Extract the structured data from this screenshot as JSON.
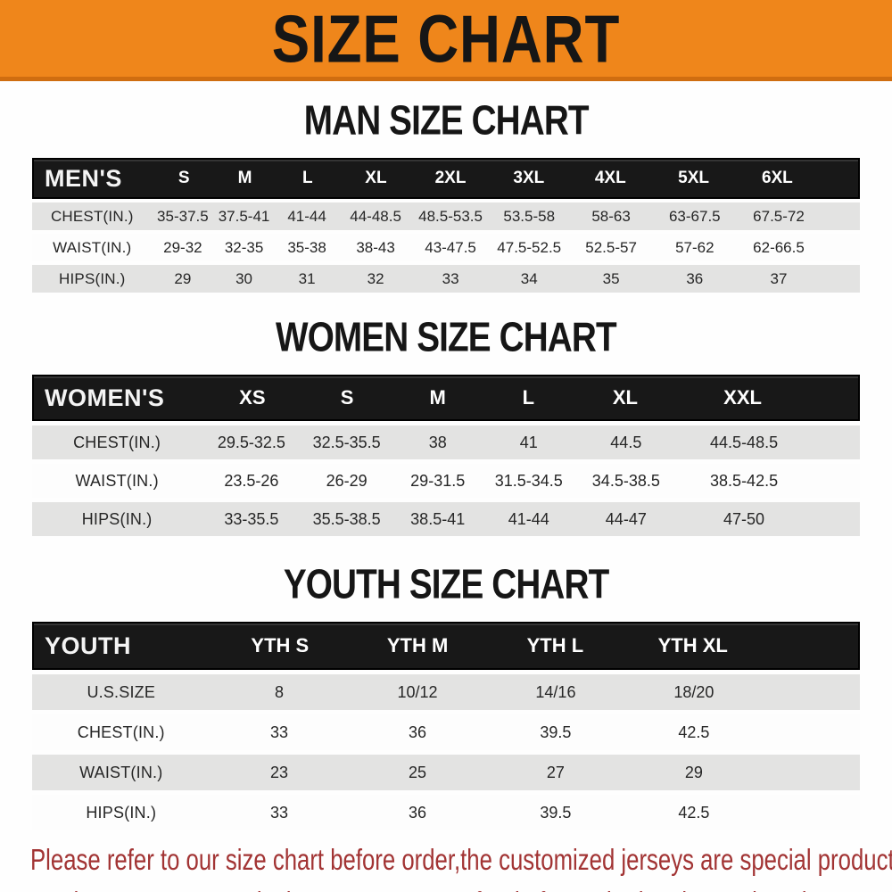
{
  "banner": {
    "title": "SIZE CHART",
    "bg_color": "#ef861b",
    "text_color": "#161616"
  },
  "sections": [
    {
      "key": "men",
      "heading": "MAN SIZE CHART",
      "header_label": "MEN'S",
      "columns": [
        "S",
        "M",
        "L",
        "XL",
        "2XL",
        "3XL",
        "4XL",
        "5XL",
        "6XL"
      ],
      "rows": [
        {
          "label": "CHEST(IN.)",
          "values": [
            "35-37.5",
            "37.5-41",
            "41-44",
            "44-48.5",
            "48.5-53.5",
            "53.5-58",
            "58-63",
            "63-67.5",
            "67.5-72"
          ]
        },
        {
          "label": "WAIST(IN.)",
          "values": [
            "29-32",
            "32-35",
            "35-38",
            "38-43",
            "43-47.5",
            "47.5-52.5",
            "52.5-57",
            "57-62",
            "62-66.5"
          ]
        },
        {
          "label": "HIPS(IN.)",
          "values": [
            "29",
            "30",
            "31",
            "32",
            "33",
            "34",
            "35",
            "36",
            "37"
          ]
        }
      ]
    },
    {
      "key": "women",
      "heading": "WOMEN SIZE CHART",
      "header_label": "WOMEN'S",
      "columns": [
        "XS",
        "S",
        "M",
        "L",
        "XL",
        "XXL"
      ],
      "rows": [
        {
          "label": "CHEST(IN.)",
          "values": [
            "29.5-32.5",
            "32.5-35.5",
            "38",
            "41",
            "44.5",
            "44.5-48.5"
          ]
        },
        {
          "label": "WAIST(IN.)",
          "values": [
            "23.5-26",
            "26-29",
            "29-31.5",
            "31.5-34.5",
            "34.5-38.5",
            "38.5-42.5"
          ]
        },
        {
          "label": "HIPS(IN.)",
          "values": [
            "33-35.5",
            "35.5-38.5",
            "38.5-41",
            "41-44",
            "44-47",
            "47-50"
          ]
        }
      ]
    },
    {
      "key": "youth",
      "heading": "YOUTH SIZE CHART",
      "header_label": "YOUTH",
      "columns": [
        "YTH S",
        "YTH M",
        "YTH L",
        "YTH XL"
      ],
      "rows": [
        {
          "label": "U.S.SIZE",
          "values": [
            "8",
            "10/12",
            "14/16",
            "18/20"
          ]
        },
        {
          "label": "CHEST(IN.)",
          "values": [
            "33",
            "36",
            "39.5",
            "42.5"
          ]
        },
        {
          "label": "WAIST(IN.)",
          "values": [
            "23",
            "25",
            "27",
            "29"
          ]
        },
        {
          "label": "HIPS(IN.)",
          "values": [
            "33",
            "36",
            "39.5",
            "42.5"
          ]
        }
      ]
    }
  ],
  "footer": {
    "lines": [
      "Please refer to our size chart before order,the customized jerseys are special products,",
      "we don't accept cancel, change, teturn or refund after order has been placed!"
    ],
    "text_color": "#a23434"
  },
  "colors": {
    "header_bar": "#181818",
    "row_alt": "#e3e3e2",
    "row_text": "#262626"
  }
}
